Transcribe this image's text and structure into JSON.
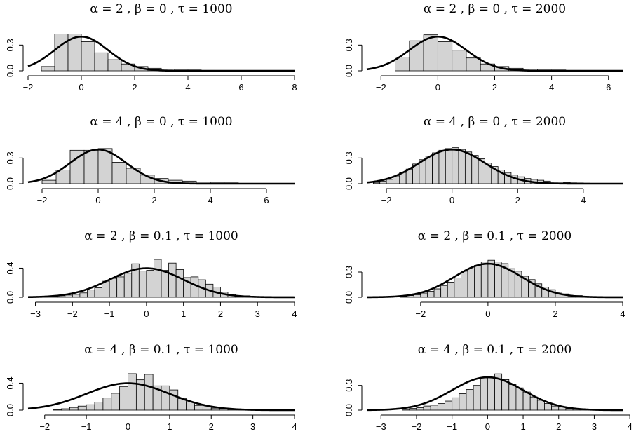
{
  "chart_data": [
    {
      "type": "histogram",
      "title": "α = 2 , β = 0 , τ = 1000",
      "xlim": [
        -2,
        8
      ],
      "ylim": [
        0,
        0.45
      ],
      "x_ticks": [
        "-2",
        "0",
        "2",
        "4",
        "6",
        "8"
      ],
      "y_ticks": [
        "0.0",
        "0.3"
      ],
      "bin_width": 0.5,
      "bins": [
        [
          -1.5,
          0.05
        ],
        [
          -1.0,
          0.43
        ],
        [
          -0.5,
          0.43
        ],
        [
          0.0,
          0.34
        ],
        [
          0.5,
          0.21
        ],
        [
          1.0,
          0.13
        ],
        [
          1.5,
          0.08
        ],
        [
          2.0,
          0.05
        ],
        [
          2.5,
          0.03
        ],
        [
          3.0,
          0.02
        ],
        [
          3.5,
          0.01
        ],
        [
          4.0,
          0.01
        ],
        [
          4.5,
          0.005
        ],
        [
          5.0,
          0.004
        ],
        [
          5.5,
          0.003
        ],
        [
          6.0,
          0.002
        ],
        [
          6.5,
          0.002
        ],
        [
          7.0,
          0.001
        ],
        [
          7.5,
          0.001
        ]
      ],
      "curve": "Standard normal density N(0,1)"
    },
    {
      "type": "histogram",
      "title": "α = 2 , β = 0 , τ = 2000",
      "xlim": [
        -2.5,
        6.5
      ],
      "ylim": [
        0,
        0.45
      ],
      "x_ticks": [
        "-2",
        "0",
        "2",
        "4",
        "6"
      ],
      "y_ticks": [
        "0.0",
        "0.3"
      ],
      "bin_width": 0.5,
      "bins": [
        [
          -1.5,
          0.16
        ],
        [
          -1.0,
          0.35
        ],
        [
          -0.5,
          0.42
        ],
        [
          0.0,
          0.34
        ],
        [
          0.5,
          0.24
        ],
        [
          1.0,
          0.15
        ],
        [
          1.5,
          0.08
        ],
        [
          2.0,
          0.05
        ],
        [
          2.5,
          0.03
        ],
        [
          3.0,
          0.02
        ],
        [
          3.5,
          0.01
        ],
        [
          4.0,
          0.01
        ],
        [
          4.5,
          0.005
        ],
        [
          5.0,
          0.003
        ],
        [
          5.5,
          0.002
        ],
        [
          6.0,
          0.001
        ]
      ],
      "curve": "Standard normal density N(0,1)"
    },
    {
      "type": "histogram",
      "title": "α = 4 , β = 0 , τ = 1000",
      "xlim": [
        -2.5,
        7.0
      ],
      "ylim": [
        0,
        0.45
      ],
      "x_ticks": [
        "-2",
        "0",
        "2",
        "4",
        "6"
      ],
      "y_ticks": [
        "0.0",
        "0.3"
      ],
      "bin_width": 0.5,
      "bins": [
        [
          -2.0,
          0.04
        ],
        [
          -1.5,
          0.16
        ],
        [
          -1.0,
          0.39
        ],
        [
          -0.5,
          0.39
        ],
        [
          0.0,
          0.41
        ],
        [
          0.5,
          0.25
        ],
        [
          1.0,
          0.18
        ],
        [
          1.5,
          0.1
        ],
        [
          2.0,
          0.06
        ],
        [
          2.5,
          0.04
        ],
        [
          3.0,
          0.03
        ],
        [
          3.5,
          0.02
        ],
        [
          4.0,
          0.01
        ],
        [
          4.5,
          0.01
        ],
        [
          5.0,
          0.005
        ],
        [
          5.5,
          0.003
        ],
        [
          6.0,
          0.002
        ],
        [
          6.5,
          0.001
        ]
      ],
      "curve": "Standard normal density N(0,1)"
    },
    {
      "type": "histogram",
      "title": "α = 4 , β = 0 , τ = 2000",
      "xlim": [
        -2.6,
        5.2
      ],
      "ylim": [
        0,
        0.45
      ],
      "x_ticks": [
        "-2",
        "0",
        "2",
        "4"
      ],
      "y_ticks": [
        "0.0",
        "0.3"
      ],
      "bin_width": 0.2,
      "bins": [
        [
          -2.4,
          0.01
        ],
        [
          -2.2,
          0.03
        ],
        [
          -2.0,
          0.05
        ],
        [
          -1.8,
          0.09
        ],
        [
          -1.6,
          0.13
        ],
        [
          -1.4,
          0.17
        ],
        [
          -1.2,
          0.23
        ],
        [
          -1.0,
          0.28
        ],
        [
          -0.8,
          0.32
        ],
        [
          -0.6,
          0.36
        ],
        [
          -0.4,
          0.39
        ],
        [
          -0.2,
          0.41
        ],
        [
          0.0,
          0.42
        ],
        [
          0.2,
          0.4
        ],
        [
          0.4,
          0.37
        ],
        [
          0.6,
          0.33
        ],
        [
          0.8,
          0.29
        ],
        [
          1.0,
          0.24
        ],
        [
          1.2,
          0.2
        ],
        [
          1.4,
          0.16
        ],
        [
          1.6,
          0.13
        ],
        [
          1.8,
          0.1
        ],
        [
          2.0,
          0.08
        ],
        [
          2.2,
          0.06
        ],
        [
          2.4,
          0.05
        ],
        [
          2.6,
          0.04
        ],
        [
          2.8,
          0.03
        ],
        [
          3.0,
          0.02
        ],
        [
          3.2,
          0.02
        ],
        [
          3.4,
          0.015
        ],
        [
          3.6,
          0.01
        ],
        [
          3.8,
          0.008
        ],
        [
          4.0,
          0.006
        ],
        [
          4.2,
          0.004
        ],
        [
          4.4,
          0.003
        ],
        [
          4.6,
          0.002
        ],
        [
          4.8,
          0.001
        ]
      ],
      "curve": "Standard normal density N(0,1)"
    },
    {
      "type": "histogram",
      "title": "α = 2 , β = 0.1 , τ = 1000",
      "xlim": [
        -3.2,
        4.0
      ],
      "ylim": [
        0,
        0.52
      ],
      "x_ticks": [
        "-3",
        "-2",
        "-1",
        "0",
        "1",
        "2",
        "3",
        "4"
      ],
      "y_ticks": [
        "0.0",
        "0.4"
      ],
      "bin_width": 0.2,
      "bins": [
        [
          -3.0,
          0.01
        ],
        [
          -2.8,
          0.01
        ],
        [
          -2.6,
          0.02
        ],
        [
          -2.4,
          0.02
        ],
        [
          -2.2,
          0.03
        ],
        [
          -2.0,
          0.04
        ],
        [
          -1.8,
          0.06
        ],
        [
          -1.6,
          0.1
        ],
        [
          -1.4,
          0.13
        ],
        [
          -1.2,
          0.22
        ],
        [
          -1.0,
          0.26
        ],
        [
          -0.8,
          0.28
        ],
        [
          -0.6,
          0.33
        ],
        [
          -0.4,
          0.46
        ],
        [
          -0.2,
          0.36
        ],
        [
          0.0,
          0.37
        ],
        [
          0.2,
          0.52
        ],
        [
          0.4,
          0.37
        ],
        [
          0.6,
          0.47
        ],
        [
          0.8,
          0.38
        ],
        [
          1.0,
          0.27
        ],
        [
          1.2,
          0.28
        ],
        [
          1.4,
          0.24
        ],
        [
          1.6,
          0.18
        ],
        [
          1.8,
          0.14
        ],
        [
          2.0,
          0.07
        ],
        [
          2.2,
          0.04
        ],
        [
          2.4,
          0.02
        ],
        [
          2.6,
          0.02
        ],
        [
          2.8,
          0.01
        ]
      ],
      "curve": "Standard normal density N(0,1)"
    },
    {
      "type": "histogram",
      "title": "α = 2 , β = 0.1 , τ = 2000",
      "xlim": [
        -3.6,
        4.0
      ],
      "ylim": [
        0,
        0.45
      ],
      "x_ticks": [
        "-2",
        "0",
        "2",
        "4"
      ],
      "y_ticks": [
        "0.0",
        "0.3"
      ],
      "bin_width": 0.2,
      "bins": [
        [
          -2.6,
          0.01
        ],
        [
          -2.4,
          0.02
        ],
        [
          -2.2,
          0.03
        ],
        [
          -2.0,
          0.05
        ],
        [
          -1.8,
          0.07
        ],
        [
          -1.6,
          0.1
        ],
        [
          -1.4,
          0.14
        ],
        [
          -1.2,
          0.18
        ],
        [
          -1.0,
          0.23
        ],
        [
          -0.8,
          0.31
        ],
        [
          -0.6,
          0.34
        ],
        [
          -0.4,
          0.38
        ],
        [
          -0.2,
          0.42
        ],
        [
          0.0,
          0.44
        ],
        [
          0.2,
          0.42
        ],
        [
          0.4,
          0.4
        ],
        [
          0.6,
          0.34
        ],
        [
          0.8,
          0.31
        ],
        [
          1.0,
          0.25
        ],
        [
          1.2,
          0.21
        ],
        [
          1.4,
          0.16
        ],
        [
          1.6,
          0.12
        ],
        [
          1.8,
          0.09
        ],
        [
          2.0,
          0.06
        ],
        [
          2.2,
          0.04
        ],
        [
          2.4,
          0.02
        ],
        [
          2.6,
          0.02
        ],
        [
          2.8,
          0.01
        ]
      ],
      "curve": "Standard normal density N(0,1)"
    },
    {
      "type": "histogram",
      "title": "α = 4 , β = 0.1 , τ = 1000",
      "xlim": [
        -2.4,
        4.0
      ],
      "ylim": [
        0,
        0.55
      ],
      "x_ticks": [
        "-2",
        "-1",
        "0",
        "1",
        "2",
        "3",
        "4"
      ],
      "y_ticks": [
        "0.0",
        "0.4"
      ],
      "bin_width": 0.2,
      "bins": [
        [
          -1.8,
          0.01
        ],
        [
          -1.6,
          0.02
        ],
        [
          -1.4,
          0.04
        ],
        [
          -1.2,
          0.06
        ],
        [
          -1.0,
          0.08
        ],
        [
          -0.8,
          0.12
        ],
        [
          -0.6,
          0.18
        ],
        [
          -0.4,
          0.25
        ],
        [
          -0.2,
          0.35
        ],
        [
          0.0,
          0.54
        ],
        [
          0.2,
          0.45
        ],
        [
          0.4,
          0.53
        ],
        [
          0.6,
          0.36
        ],
        [
          0.8,
          0.36
        ],
        [
          1.0,
          0.3
        ],
        [
          1.2,
          0.17
        ],
        [
          1.4,
          0.12
        ],
        [
          1.6,
          0.07
        ],
        [
          1.8,
          0.05
        ],
        [
          2.0,
          0.03
        ],
        [
          2.2,
          0.02
        ],
        [
          2.4,
          0.01
        ],
        [
          2.6,
          0.005
        ]
      ],
      "curve": "Standard normal density N(0,1)"
    },
    {
      "type": "histogram",
      "title": "α = 4 , β = 0.1 , τ = 2000",
      "xlim": [
        -3.4,
        3.8
      ],
      "ylim": [
        0,
        0.45
      ],
      "x_ticks": [
        "-3",
        "-2",
        "-1",
        "0",
        "1",
        "2",
        "3",
        "4"
      ],
      "y_ticks": [
        "0.0",
        "0.3"
      ],
      "bin_width": 0.2,
      "bins": [
        [
          -2.4,
          0.01
        ],
        [
          -2.2,
          0.02
        ],
        [
          -2.0,
          0.03
        ],
        [
          -1.8,
          0.05
        ],
        [
          -1.6,
          0.06
        ],
        [
          -1.4,
          0.08
        ],
        [
          -1.2,
          0.11
        ],
        [
          -1.0,
          0.15
        ],
        [
          -0.8,
          0.2
        ],
        [
          -0.6,
          0.25
        ],
        [
          -0.4,
          0.3
        ],
        [
          -0.2,
          0.38
        ],
        [
          0.0,
          0.4
        ],
        [
          0.2,
          0.44
        ],
        [
          0.4,
          0.37
        ],
        [
          0.6,
          0.31
        ],
        [
          0.8,
          0.27
        ],
        [
          1.0,
          0.22
        ],
        [
          1.2,
          0.16
        ],
        [
          1.4,
          0.12
        ],
        [
          1.6,
          0.08
        ],
        [
          1.8,
          0.05
        ],
        [
          2.0,
          0.04
        ],
        [
          2.2,
          0.02
        ],
        [
          2.4,
          0.01
        ],
        [
          2.6,
          0.01
        ]
      ],
      "curve": "Standard normal density N(0,1)"
    }
  ],
  "style": {
    "bar_fill": "#d3d3d3",
    "bar_stroke": "#000000",
    "curve_color": "#000000"
  }
}
